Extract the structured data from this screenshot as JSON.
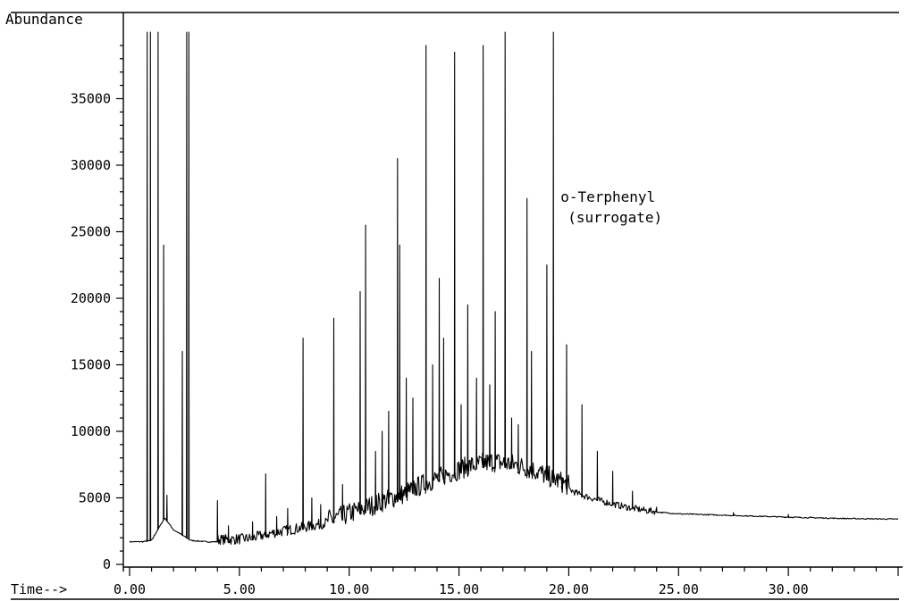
{
  "chart_data": {
    "type": "line",
    "ylabel": "Abundance",
    "xlabel": "Time-->",
    "xlim": [
      0,
      35
    ],
    "ylim": [
      0,
      40000
    ],
    "yticks": [
      0,
      5000,
      10000,
      15000,
      20000,
      25000,
      30000,
      35000
    ],
    "ytick_labels": [
      "0",
      "5000",
      "10000",
      "15000",
      "20000",
      "25000",
      "30000",
      "35000"
    ],
    "xticks": [
      0,
      5,
      10,
      15,
      20,
      25,
      30
    ],
    "xtick_labels": [
      "0.00",
      "5.00",
      "10.00",
      "15.00",
      "20.00",
      "25.00",
      "30.00"
    ],
    "grid": false,
    "annotations": [
      {
        "text": "o-Terphenyl",
        "x": 19.3
      },
      {
        "text": "(surrogate)",
        "x": 19.3
      }
    ],
    "baseline": [
      [
        0.0,
        1700
      ],
      [
        0.6,
        1700
      ],
      [
        1.0,
        1800
      ],
      [
        1.6,
        3500
      ],
      [
        2.0,
        2600
      ],
      [
        2.8,
        1800
      ],
      [
        3.5,
        1700
      ],
      [
        4.5,
        1700
      ],
      [
        5.5,
        1800
      ],
      [
        6.5,
        2200
      ],
      [
        7.5,
        2500
      ],
      [
        8.5,
        2800
      ],
      [
        9.5,
        3200
      ],
      [
        10.5,
        3800
      ],
      [
        11.5,
        4400
      ],
      [
        12.5,
        5000
      ],
      [
        13.5,
        5800
      ],
      [
        14.5,
        6500
      ],
      [
        15.5,
        7100
      ],
      [
        16.5,
        7400
      ],
      [
        17.5,
        7200
      ],
      [
        18.5,
        6700
      ],
      [
        19.5,
        6000
      ],
      [
        20.5,
        5200
      ],
      [
        21.5,
        4700
      ],
      [
        22.5,
        4300
      ],
      [
        23.5,
        4000
      ],
      [
        25.0,
        3800
      ],
      [
        27.0,
        3700
      ],
      [
        30.0,
        3550
      ],
      [
        32.5,
        3450
      ],
      [
        35.0,
        3400
      ]
    ],
    "peaks": [
      [
        0.8,
        40000
      ],
      [
        0.95,
        40000
      ],
      [
        1.3,
        40000
      ],
      [
        1.55,
        24000
      ],
      [
        1.7,
        5200
      ],
      [
        2.4,
        16000
      ],
      [
        2.6,
        40000
      ],
      [
        2.7,
        40000
      ],
      [
        4.0,
        4800
      ],
      [
        4.5,
        2900
      ],
      [
        5.6,
        3200
      ],
      [
        6.2,
        6800
      ],
      [
        6.7,
        3600
      ],
      [
        7.2,
        4200
      ],
      [
        7.9,
        17000
      ],
      [
        8.3,
        5000
      ],
      [
        8.7,
        4500
      ],
      [
        9.3,
        18500
      ],
      [
        9.7,
        6000
      ],
      [
        10.5,
        20500
      ],
      [
        10.75,
        25500
      ],
      [
        11.2,
        8500
      ],
      [
        11.5,
        10000
      ],
      [
        11.8,
        11500
      ],
      [
        12.2,
        30500
      ],
      [
        12.3,
        24000
      ],
      [
        12.6,
        14000
      ],
      [
        12.9,
        12500
      ],
      [
        13.5,
        39000
      ],
      [
        13.8,
        15000
      ],
      [
        14.1,
        21500
      ],
      [
        14.3,
        17000
      ],
      [
        14.8,
        38500
      ],
      [
        15.1,
        12000
      ],
      [
        15.4,
        19500
      ],
      [
        15.8,
        14000
      ],
      [
        16.1,
        39000
      ],
      [
        16.4,
        13500
      ],
      [
        16.65,
        19000
      ],
      [
        17.1,
        40000
      ],
      [
        17.4,
        11000
      ],
      [
        17.7,
        10500
      ],
      [
        18.1,
        27500
      ],
      [
        18.3,
        16000
      ],
      [
        19.0,
        22500
      ],
      [
        19.3,
        40000
      ],
      [
        19.7,
        6500
      ],
      [
        19.9,
        16500
      ],
      [
        20.6,
        12000
      ],
      [
        21.3,
        8500
      ],
      [
        22.0,
        7000
      ],
      [
        22.9,
        5500
      ],
      [
        24.0,
        4300
      ],
      [
        27.5,
        3900
      ],
      [
        30.0,
        3750
      ]
    ]
  }
}
